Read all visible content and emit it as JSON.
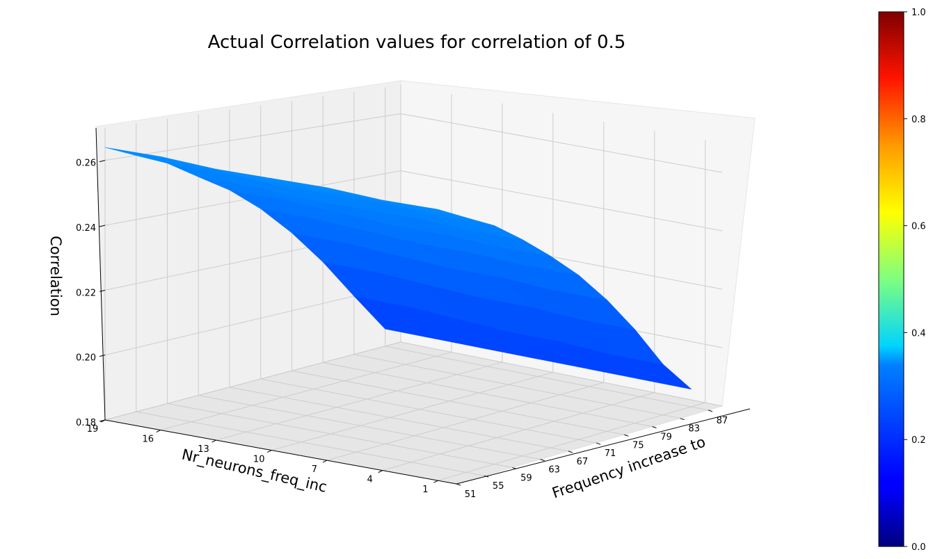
{
  "chart_data": {
    "type": "surface3d",
    "title": "Actual Correlation values for correlation of 0.5",
    "xlabel": "Nr_neurons_freq_inc",
    "ylabel": "Frequency increase to",
    "zlabel": "Correlation",
    "x_ticks": [
      "19",
      "16",
      "13",
      "10",
      "7",
      "4",
      "1"
    ],
    "y_ticks": [
      "51",
      "55",
      "59",
      "63",
      "67",
      "71",
      "75",
      "79",
      "83",
      "87"
    ],
    "z_ticks": [
      "0.26",
      "0.24",
      "0.22",
      "0.20",
      "0.18"
    ],
    "zlim": [
      0.18,
      0.27
    ],
    "colormap": "jet",
    "colorbar": {
      "range": [
        0.0,
        1.0
      ],
      "ticks": [
        "1.0",
        "0.8",
        "0.6",
        "0.4",
        "0.2",
        "0.0"
      ]
    },
    "surface": {
      "nr_neurons": [
        20,
        17,
        14,
        11,
        8,
        5,
        2
      ],
      "frequency": [
        51,
        55,
        59,
        63,
        67,
        71,
        75,
        79,
        83,
        87
      ],
      "correlation": [
        [
          0.264,
          0.26,
          0.256,
          0.25,
          0.244,
          0.236,
          0.226,
          0.214,
          0.2,
          0.186
        ],
        [
          0.264,
          0.26,
          0.256,
          0.25,
          0.244,
          0.236,
          0.226,
          0.214,
          0.2,
          0.186
        ],
        [
          0.263,
          0.259,
          0.255,
          0.249,
          0.243,
          0.235,
          0.225,
          0.213,
          0.199,
          0.186
        ],
        [
          0.263,
          0.259,
          0.255,
          0.249,
          0.242,
          0.234,
          0.224,
          0.212,
          0.198,
          0.186
        ],
        [
          0.263,
          0.259,
          0.255,
          0.249,
          0.242,
          0.234,
          0.224,
          0.212,
          0.198,
          0.186
        ],
        [
          0.262,
          0.258,
          0.254,
          0.248,
          0.241,
          0.233,
          0.223,
          0.211,
          0.197,
          0.186
        ],
        [
          0.262,
          0.258,
          0.254,
          0.248,
          0.241,
          0.233,
          0.223,
          0.211,
          0.197,
          0.186
        ]
      ]
    },
    "grid": true
  }
}
